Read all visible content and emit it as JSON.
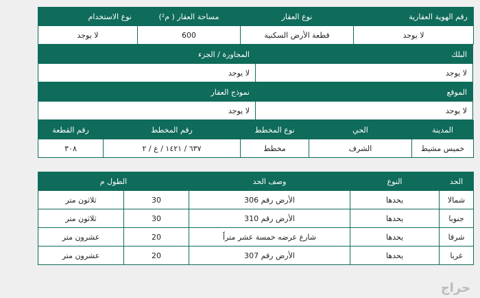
{
  "property": {
    "headers": [
      "رقم الهوية العقارية",
      "نوع العقار",
      "مساحة العقار ( م²)",
      "نوع الاستخدام"
    ],
    "values": [
      "لا يوجد",
      "قطعة الأرض السكنية",
      "600",
      "لا يوجد"
    ]
  },
  "block": {
    "headers": [
      "البلك",
      "المجاورة / الجزء"
    ],
    "values": [
      "لا يوجد",
      "لا يوجد"
    ]
  },
  "location": {
    "headers": [
      "الموقع",
      "نموذج العقار"
    ],
    "values": [
      "لا يوجد",
      "لا يوجد"
    ]
  },
  "plan": {
    "headers": [
      "المدينة",
      "الحي",
      "نوع المخطط",
      "رقم المخطط",
      "رقم القطعة"
    ],
    "values": [
      "خميس مشيط",
      "الشرف",
      "مخطط",
      "٦٣٧ / ١٤٢١ / ع / ٢",
      "٣٠٨"
    ]
  },
  "boundaries": {
    "headers": [
      "الحد",
      "النوع",
      "وصف الحد",
      "الطول م"
    ],
    "rows": [
      [
        "شمالا",
        "يحدها",
        "الأرض رقم 306",
        "30",
        "ثلاثون متر"
      ],
      [
        "جنوبا",
        "يحدها",
        "الأرض رقم 310",
        "30",
        "ثلاثون متر"
      ],
      [
        "شرقا",
        "يحدها",
        "شارع عرضه خمسة عشر متراً",
        "20",
        "عشرون متر"
      ],
      [
        "غربا",
        "يحدها",
        "الأرض رقم 307",
        "20",
        "عشرون متر"
      ]
    ]
  },
  "watermark": "حراج"
}
